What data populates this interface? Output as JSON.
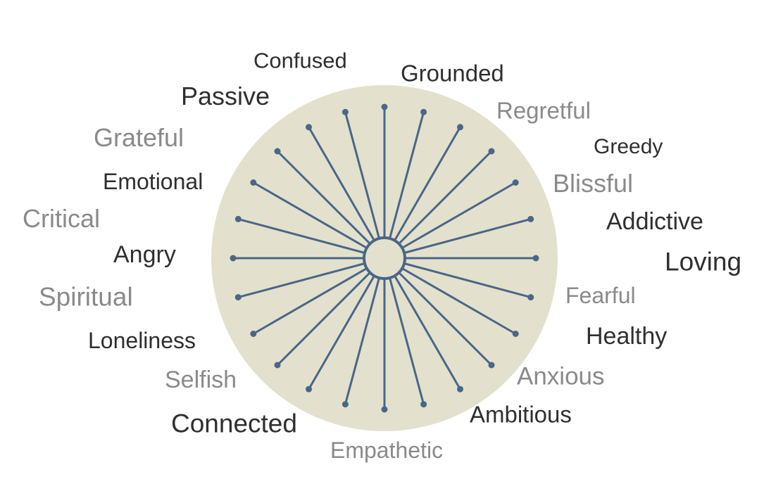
{
  "colors": {
    "disc": "#e3e1cd",
    "spoke": "#4a6688",
    "dark": "#2f2f2f",
    "gray": "#8a8a8a"
  },
  "spoke_count": 24,
  "words": [
    {
      "key": "confused",
      "text": "Confused",
      "tone": "dark"
    },
    {
      "key": "grounded",
      "text": "Grounded",
      "tone": "dark"
    },
    {
      "key": "passive",
      "text": "Passive",
      "tone": "dark"
    },
    {
      "key": "regretful",
      "text": "Regretful",
      "tone": "gray"
    },
    {
      "key": "grateful",
      "text": "Grateful",
      "tone": "gray"
    },
    {
      "key": "greedy",
      "text": "Greedy",
      "tone": "dark"
    },
    {
      "key": "emotional",
      "text": "Emotional",
      "tone": "dark"
    },
    {
      "key": "blissful",
      "text": "Blissful",
      "tone": "gray"
    },
    {
      "key": "critical",
      "text": "Critical",
      "tone": "gray"
    },
    {
      "key": "addictive",
      "text": "Addictive",
      "tone": "dark"
    },
    {
      "key": "angry",
      "text": "Angry",
      "tone": "dark"
    },
    {
      "key": "loving",
      "text": "Loving",
      "tone": "dark"
    },
    {
      "key": "spiritual",
      "text": "Spiritual",
      "tone": "gray"
    },
    {
      "key": "fearful",
      "text": "Fearful",
      "tone": "gray"
    },
    {
      "key": "loneliness",
      "text": "Loneliness",
      "tone": "dark"
    },
    {
      "key": "healthy",
      "text": "Healthy",
      "tone": "dark"
    },
    {
      "key": "selfish",
      "text": "Selfish",
      "tone": "gray"
    },
    {
      "key": "anxious",
      "text": "Anxious",
      "tone": "gray"
    },
    {
      "key": "connected",
      "text": "Connected",
      "tone": "dark"
    },
    {
      "key": "ambitious",
      "text": "Ambitious",
      "tone": "dark"
    },
    {
      "key": "empathetic",
      "text": "Empathetic",
      "tone": "gray"
    }
  ]
}
